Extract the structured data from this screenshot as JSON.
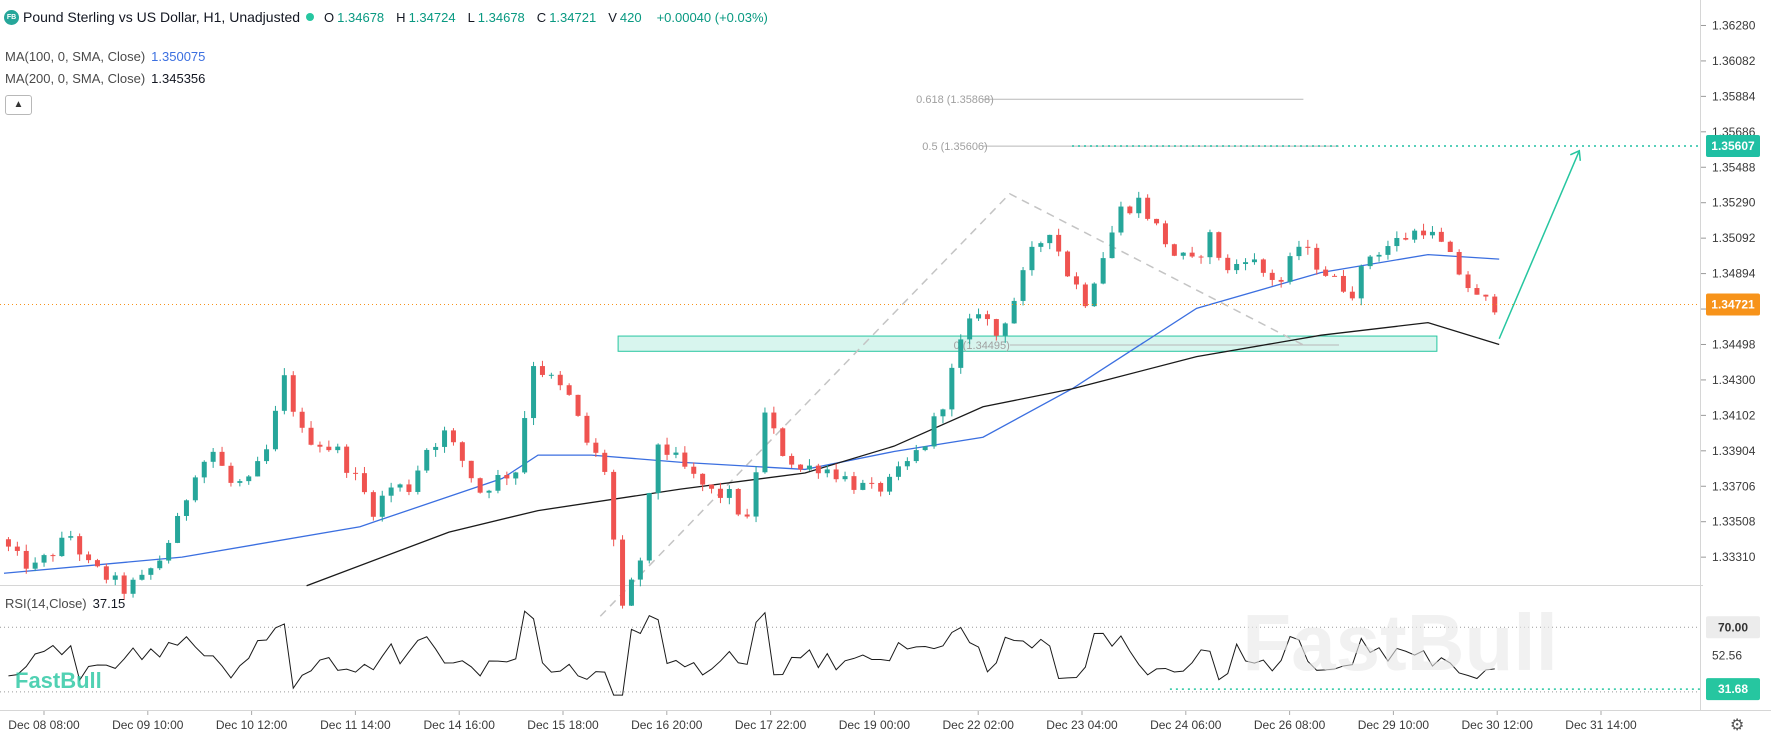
{
  "header": {
    "logo_text": "FB",
    "symbol": "Pound Sterling vs US Dollar, H1, Unadjusted",
    "ohlc": [
      {
        "label": "O",
        "value": "1.34678"
      },
      {
        "label": "H",
        "value": "1.34724"
      },
      {
        "label": "L",
        "value": "1.34678"
      },
      {
        "label": "C",
        "value": "1.34721"
      },
      {
        "label": "V",
        "value": "420"
      }
    ],
    "change": "+0.00040 (+0.03%)"
  },
  "indicators": {
    "ma100": {
      "label": "MA(100, 0, SMA, Close)",
      "value": "1.350075",
      "color": "#3b6fe0"
    },
    "ma200": {
      "label": "MA(200, 0, SMA, Close)",
      "value": "1.345356",
      "color": "#1a1a1a"
    },
    "collapse_icon": "chevron-up-icon"
  },
  "rsi": {
    "label": "RSI(14,Close)",
    "value": "37.15",
    "levels": [
      "70.00",
      "52.56"
    ],
    "current": "31.68",
    "current_color": "#26c6a0"
  },
  "price_tags": {
    "current": {
      "value": "1.34721",
      "color": "#f7931a"
    },
    "target": {
      "value": "1.35607",
      "color": "#1fbfa3"
    }
  },
  "watermark": "FastBull",
  "settings_icon": "gear-icon",
  "chart_data": {
    "type": "candlestick",
    "title": "Pound Sterling vs US Dollar, H1, Unadjusted",
    "colors": {
      "up": "#26a69a",
      "down": "#ef5350",
      "ma100": "#3b6fe0",
      "ma200": "#1a1a1a",
      "zone": "#26c6a0"
    },
    "y_ticks": [
      "1.36280",
      "1.36082",
      "1.35884",
      "1.35686",
      "1.35488",
      "1.35290",
      "1.35092",
      "1.34894",
      "1.34696",
      "1.34498",
      "1.34300",
      "1.34102",
      "1.33904",
      "1.33706",
      "1.33508",
      "1.33310"
    ],
    "x_ticks": [
      "Dec 08 08:00",
      "Dec 09 10:00",
      "Dec 10 12:00",
      "Dec 11 14:00",
      "Dec 14 16:00",
      "Dec 15 18:00",
      "Dec 16 20:00",
      "Dec 17 22:00",
      "Dec 19 00:00",
      "Dec 22 02:00",
      "Dec 23 04:00",
      "Dec 24 06:00",
      "Dec 26 08:00",
      "Dec 29 10:00",
      "Dec 30 12:00",
      "Dec 31 14:00"
    ],
    "ylim": [
      1.3316,
      1.364
    ],
    "price_path": [
      [
        0,
        1.3341
      ],
      [
        2,
        1.333
      ],
      [
        4,
        1.3325
      ],
      [
        6,
        1.3334
      ],
      [
        8,
        1.3343
      ],
      [
        10,
        1.3326
      ],
      [
        12,
        1.332
      ],
      [
        14,
        1.3313
      ],
      [
        16,
        1.3318
      ],
      [
        18,
        1.333
      ],
      [
        20,
        1.335
      ],
      [
        22,
        1.338
      ],
      [
        24,
        1.339
      ],
      [
        26,
        1.3372
      ],
      [
        28,
        1.3372
      ],
      [
        30,
        1.339
      ],
      [
        32,
        1.343
      ],
      [
        34,
        1.34
      ],
      [
        36,
        1.3395
      ],
      [
        38,
        1.339
      ],
      [
        40,
        1.3375
      ],
      [
        42,
        1.3358
      ],
      [
        44,
        1.337
      ],
      [
        46,
        1.337
      ],
      [
        48,
        1.3392
      ],
      [
        50,
        1.34
      ],
      [
        52,
        1.3385
      ],
      [
        54,
        1.3368
      ],
      [
        56,
        1.3375
      ],
      [
        58,
        1.338
      ],
      [
        60,
        1.344
      ],
      [
        62,
        1.343
      ],
      [
        64,
        1.342
      ],
      [
        66,
        1.3395
      ],
      [
        68,
        1.338
      ],
      [
        70,
        1.33
      ],
      [
        72,
        1.333
      ],
      [
        74,
        1.3395
      ],
      [
        76,
        1.3385
      ],
      [
        78,
        1.3375
      ],
      [
        80,
        1.3367
      ],
      [
        82,
        1.3365
      ],
      [
        84,
        1.335
      ],
      [
        86,
        1.341
      ],
      [
        88,
        1.339
      ],
      [
        90,
        1.338
      ],
      [
        92,
        1.3382
      ],
      [
        94,
        1.3378
      ],
      [
        96,
        1.3372
      ],
      [
        98,
        1.3368
      ],
      [
        100,
        1.3372
      ],
      [
        102,
        1.3383
      ],
      [
        104,
        1.3395
      ],
      [
        106,
        1.3418
      ],
      [
        108,
        1.345
      ],
      [
        110,
        1.347
      ],
      [
        112,
        1.3455
      ],
      [
        114,
        1.3475
      ],
      [
        116,
        1.35
      ],
      [
        118,
        1.3515
      ],
      [
        120,
        1.349
      ],
      [
        122,
        1.3475
      ],
      [
        124,
        1.35
      ],
      [
        126,
        1.3525
      ],
      [
        128,
        1.353
      ],
      [
        130,
        1.3515
      ],
      [
        132,
        1.35
      ],
      [
        134,
        1.3495
      ],
      [
        136,
        1.351
      ],
      [
        138,
        1.349
      ],
      [
        140,
        1.35
      ],
      [
        142,
        1.349
      ],
      [
        144,
        1.3485
      ],
      [
        146,
        1.3505
      ],
      [
        148,
        1.3495
      ],
      [
        150,
        1.3485
      ],
      [
        152,
        1.348
      ],
      [
        154,
        1.35
      ],
      [
        156,
        1.3505
      ],
      [
        158,
        1.351
      ],
      [
        160,
        1.3515
      ],
      [
        162,
        1.3505
      ],
      [
        164,
        1.349
      ],
      [
        166,
        1.3475
      ],
      [
        168,
        1.3472
      ]
    ],
    "ma100_path": [
      [
        0,
        1.3322
      ],
      [
        20,
        1.3331
      ],
      [
        40,
        1.3348
      ],
      [
        56,
        1.3375
      ],
      [
        60,
        1.3388
      ],
      [
        66,
        1.3388
      ],
      [
        76,
        1.3384
      ],
      [
        90,
        1.338
      ],
      [
        100,
        1.339
      ],
      [
        110,
        1.3398
      ],
      [
        120,
        1.3425
      ],
      [
        134,
        1.347
      ],
      [
        148,
        1.349
      ],
      [
        160,
        1.35
      ],
      [
        168,
        1.34975
      ]
    ],
    "ma200_path": [
      [
        34,
        1.3315
      ],
      [
        50,
        1.3345
      ],
      [
        60,
        1.3357
      ],
      [
        76,
        1.3369
      ],
      [
        90,
        1.3378
      ],
      [
        100,
        1.3393
      ],
      [
        110,
        1.3415
      ],
      [
        120,
        1.3425
      ],
      [
        134,
        1.3443
      ],
      [
        148,
        1.3455
      ],
      [
        160,
        1.3462
      ],
      [
        168,
        1.34498
      ]
    ],
    "fibonacci": [
      {
        "label": "0.618 (1.35868)",
        "value": 1.35868
      },
      {
        "label": "0.5 (1.35606)",
        "value": 1.35606
      },
      {
        "label": "0 (1.34495)",
        "value": 1.34495
      }
    ],
    "support_zone": [
      1.3446,
      1.34545
    ],
    "projection": {
      "from": [
        168,
        1.3453
      ],
      "to": [
        177,
        1.3558
      ]
    }
  }
}
